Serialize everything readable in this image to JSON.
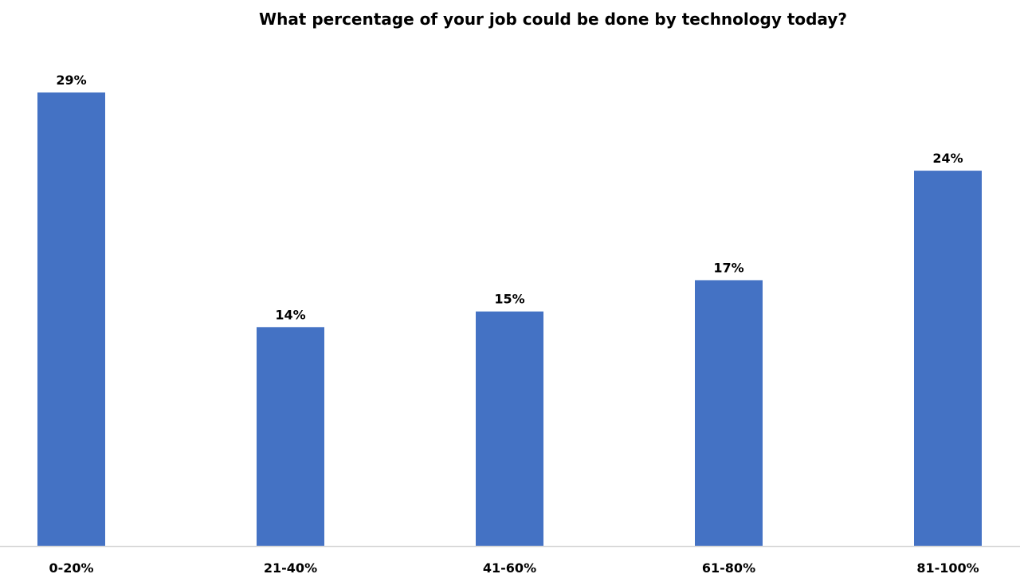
{
  "chart_data": {
    "type": "bar",
    "title": "What percentage of your job could be done by technology today?",
    "categories": [
      "0-20%",
      "21-40%",
      "41-60%",
      "61-80%",
      "81-100%"
    ],
    "values": [
      29,
      14,
      15,
      17,
      24
    ],
    "data_labels": [
      "29%",
      "14%",
      "15%",
      "17%",
      "24%"
    ],
    "xlabel": "",
    "ylabel": "",
    "ylim": [
      0,
      29
    ],
    "grid": false,
    "legend": "none",
    "colors": {
      "bar": "#4472C4",
      "axis": "#D9D9D9"
    }
  }
}
